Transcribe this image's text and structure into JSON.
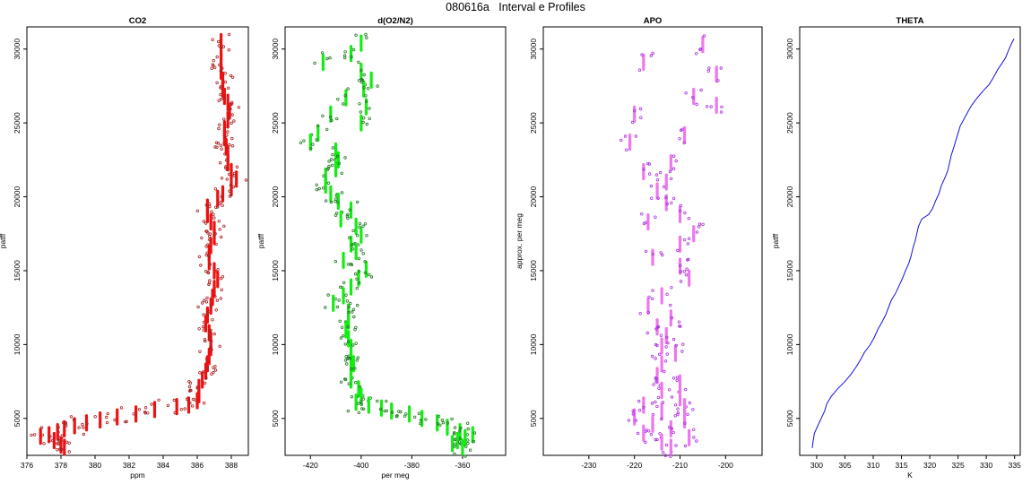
{
  "page": {
    "title": "080616a   Interval e Profiles"
  },
  "chart_data": [
    {
      "type": "scatter",
      "title": "CO2",
      "xlabel": "ppm",
      "ylabel": "patff",
      "xlim": [
        376,
        389
      ],
      "ylim": [
        2500,
        31500
      ],
      "xticks": [
        376,
        378,
        380,
        382,
        384,
        386,
        388
      ],
      "yticks": [
        5000,
        10000,
        15000,
        20000,
        25000,
        30000
      ],
      "colors": {
        "bar": "#ee1111",
        "point": "#aa2222"
      },
      "series": [
        {
          "values": [
            [
              387.4,
              30500
            ],
            [
              387.4,
              29800
            ],
            [
              387.4,
              29200
            ],
            [
              387.4,
              28500
            ],
            [
              387.5,
              27900
            ],
            [
              387.5,
              27300
            ],
            [
              387.6,
              26800
            ],
            [
              387.8,
              26400
            ],
            [
              387.9,
              25800
            ],
            [
              387.8,
              25200
            ],
            [
              387.6,
              24600
            ],
            [
              387.6,
              24000
            ],
            [
              387.7,
              23400
            ],
            [
              387.8,
              22900
            ],
            [
              387.8,
              22300
            ],
            [
              388.0,
              21700
            ],
            [
              388.3,
              21200
            ],
            [
              388.0,
              20600
            ],
            [
              387.5,
              20200
            ],
            [
              387.2,
              19900
            ],
            [
              386.6,
              19300
            ],
            [
              386.6,
              18800
            ],
            [
              386.8,
              18300
            ],
            [
              387.0,
              17800
            ],
            [
              387.0,
              17300
            ],
            [
              386.8,
              16700
            ],
            [
              386.7,
              16200
            ],
            [
              386.7,
              15600
            ],
            [
              387.0,
              15000
            ],
            [
              387.2,
              14400
            ],
            [
              387.0,
              13800
            ],
            [
              386.9,
              13200
            ],
            [
              386.8,
              12600
            ],
            [
              386.6,
              12000
            ],
            [
              386.5,
              11400
            ],
            [
              386.7,
              10800
            ],
            [
              386.8,
              10300
            ],
            [
              386.8,
              9800
            ],
            [
              386.7,
              9200
            ],
            [
              386.6,
              8700
            ],
            [
              386.5,
              8200
            ],
            [
              386.3,
              7600
            ],
            [
              386.1,
              7100
            ],
            [
              386.1,
              6600
            ],
            [
              386.0,
              6200
            ],
            [
              385.5,
              5900
            ],
            [
              384.8,
              5800
            ],
            [
              383.5,
              5600
            ],
            [
              382.4,
              5300
            ],
            [
              381.3,
              5100
            ],
            [
              380.3,
              4900
            ],
            [
              379.5,
              4700
            ],
            [
              378.8,
              4500
            ],
            [
              378.2,
              4300
            ],
            [
              377.8,
              4100
            ],
            [
              377.3,
              3900
            ],
            [
              376.8,
              3800
            ],
            [
              377.6,
              3500
            ],
            [
              378.0,
              3200
            ],
            [
              378.2,
              3050
            ]
          ]
        }
      ]
    },
    {
      "type": "scatter",
      "title": "d(O2/N2)",
      "xlabel": "per meg",
      "ylabel": "patff",
      "xlim": [
        -430,
        -343
      ],
      "ylim": [
        2500,
        31500
      ],
      "xticks": [
        -420,
        -400,
        -380,
        -360
      ],
      "yticks": [
        5000,
        10000,
        15000,
        20000,
        25000,
        30000
      ],
      "colors": {
        "bar": "#11ee11",
        "point": "#227722"
      },
      "series": [
        {
          "values": [
            [
              -400,
              30400
            ],
            [
              -404,
              29700
            ],
            [
              -415,
              29100
            ],
            [
              -400,
              28500
            ],
            [
              -396,
              27900
            ],
            [
              -399,
              27300
            ],
            [
              -406,
              26700
            ],
            [
              -398,
              26100
            ],
            [
              -412,
              25600
            ],
            [
              -400,
              25000
            ],
            [
              -417,
              24300
            ],
            [
              -420,
              23700
            ],
            [
              -410,
              23100
            ],
            [
              -409,
              22500
            ],
            [
              -410,
              21900
            ],
            [
              -414,
              21400
            ],
            [
              -414,
              20800
            ],
            [
              -412,
              20200
            ],
            [
              -409,
              19700
            ],
            [
              -404,
              19100
            ],
            [
              -408,
              18500
            ],
            [
              -402,
              18000
            ],
            [
              -400,
              17400
            ],
            [
              -404,
              16800
            ],
            [
              -402,
              16300
            ],
            [
              -407,
              15700
            ],
            [
              -398,
              15100
            ],
            [
              -401,
              14500
            ],
            [
              -404,
              13900
            ],
            [
              -407,
              13300
            ],
            [
              -411,
              12800
            ],
            [
              -405,
              12200
            ],
            [
              -405,
              11600
            ],
            [
              -406,
              11000
            ],
            [
              -405,
              10400
            ],
            [
              -404,
              9800
            ],
            [
              -404,
              9200
            ],
            [
              -403,
              8700
            ],
            [
              -404,
              8100
            ],
            [
              -404,
              7600
            ],
            [
              -401,
              7000
            ],
            [
              -400,
              6500
            ],
            [
              -402,
              6100
            ],
            [
              -397,
              5900
            ],
            [
              -392,
              5700
            ],
            [
              -388,
              5500
            ],
            [
              -381,
              5300
            ],
            [
              -376,
              5000
            ],
            [
              -370,
              4700
            ],
            [
              -366,
              4400
            ],
            [
              -361,
              4100
            ],
            [
              -356,
              3900
            ],
            [
              -359,
              3700
            ],
            [
              -362,
              3500
            ],
            [
              -364,
              3300
            ],
            [
              -360,
              3050
            ]
          ]
        }
      ]
    },
    {
      "type": "scatter",
      "title": "APO",
      "xlabel": "",
      "ylabel": "approx. per meg",
      "xlim": [
        -240,
        -192
      ],
      "ylim": [
        2500,
        31500
      ],
      "xticks": [
        -230,
        -220,
        -210,
        -200
      ],
      "yticks": [
        5000,
        10000,
        15000,
        20000,
        25000,
        30000
      ],
      "colors": {
        "bar": "#ee77ee",
        "point": "#aa33dd"
      },
      "series": [
        {
          "values": [
            [
              -205,
              30300
            ],
            [
              -218,
              29100
            ],
            [
              -202,
              28300
            ],
            [
              -207,
              26800
            ],
            [
              -202,
              26200
            ],
            [
              -220,
              25600
            ],
            [
              -209,
              24200
            ],
            [
              -221,
              23700
            ],
            [
              -212,
              22300
            ],
            [
              -218,
              21700
            ],
            [
              -213,
              21000
            ],
            [
              -215,
              20400
            ],
            [
              -213,
              19600
            ],
            [
              -210,
              18800
            ],
            [
              -217,
              18300
            ],
            [
              -207,
              17500
            ],
            [
              -210,
              16800
            ],
            [
              -216,
              15900
            ],
            [
              -210,
              15300
            ],
            [
              -208,
              14500
            ],
            [
              -214,
              13300
            ],
            [
              -217,
              12600
            ],
            [
              -212,
              11800
            ],
            [
              -215,
              11200
            ],
            [
              -213,
              10600
            ],
            [
              -214,
              9900
            ],
            [
              -211,
              9400
            ],
            [
              -214,
              8700
            ],
            [
              -215,
              7900
            ],
            [
              -210,
              7400
            ],
            [
              -214,
              6900
            ],
            [
              -210,
              6400
            ],
            [
              -218,
              5900
            ],
            [
              -209,
              5800
            ],
            [
              -214,
              5500
            ],
            [
              -220,
              5100
            ],
            [
              -209,
              4900
            ],
            [
              -216,
              4600
            ],
            [
              -212,
              4300
            ],
            [
              -218,
              4000
            ],
            [
              -208,
              3700
            ],
            [
              -214,
              3400
            ],
            [
              -212,
              3050
            ]
          ]
        }
      ]
    },
    {
      "type": "line",
      "title": "THETA",
      "xlabel": "K",
      "ylabel": "patff",
      "xlim": [
        297,
        336
      ],
      "ylim": [
        2500,
        31500
      ],
      "xticks": [
        300,
        305,
        310,
        315,
        320,
        325,
        330,
        335
      ],
      "yticks": [
        5000,
        10000,
        15000,
        20000,
        25000,
        30000
      ],
      "colors": {
        "line": "#1111dd"
      },
      "series": [
        {
          "values": [
            [
              299.2,
              3000
            ],
            [
              299.4,
              3500
            ],
            [
              299.6,
              4000
            ],
            [
              300.2,
              4500
            ],
            [
              300.8,
              5000
            ],
            [
              301.4,
              5500
            ],
            [
              301.8,
              6000
            ],
            [
              302.6,
              6500
            ],
            [
              303.7,
              7000
            ],
            [
              305.0,
              7500
            ],
            [
              306.1,
              8000
            ],
            [
              307.0,
              8500
            ],
            [
              307.8,
              9000
            ],
            [
              308.5,
              9500
            ],
            [
              309.5,
              10000
            ],
            [
              310.2,
              10500
            ],
            [
              310.8,
              11000
            ],
            [
              311.5,
              11500
            ],
            [
              312.2,
              12000
            ],
            [
              312.7,
              12500
            ],
            [
              313.2,
              13000
            ],
            [
              314.0,
              13500
            ],
            [
              314.6,
              14000
            ],
            [
              315.2,
              14500
            ],
            [
              315.7,
              15000
            ],
            [
              316.3,
              15500
            ],
            [
              316.7,
              16000
            ],
            [
              317.0,
              16500
            ],
            [
              317.4,
              17000
            ],
            [
              317.7,
              17500
            ],
            [
              318.0,
              18000
            ],
            [
              318.6,
              18500
            ],
            [
              319.8,
              18800
            ],
            [
              320.5,
              19200
            ],
            [
              321.0,
              19700
            ],
            [
              321.6,
              20200
            ],
            [
              322.1,
              20800
            ],
            [
              322.7,
              21300
            ],
            [
              323.2,
              21800
            ],
            [
              323.5,
              22300
            ],
            [
              323.8,
              22800
            ],
            [
              324.2,
              23300
            ],
            [
              324.6,
              23800
            ],
            [
              325.0,
              24300
            ],
            [
              325.4,
              24800
            ],
            [
              326.1,
              25300
            ],
            [
              326.8,
              25800
            ],
            [
              327.4,
              26200
            ],
            [
              328.4,
              26700
            ],
            [
              329.5,
              27200
            ],
            [
              330.5,
              27600
            ],
            [
              331.3,
              28100
            ],
            [
              332.0,
              28600
            ],
            [
              332.7,
              29000
            ],
            [
              333.4,
              29400
            ],
            [
              333.9,
              29900
            ],
            [
              334.5,
              30400
            ],
            [
              334.9,
              30700
            ]
          ]
        }
      ]
    }
  ]
}
